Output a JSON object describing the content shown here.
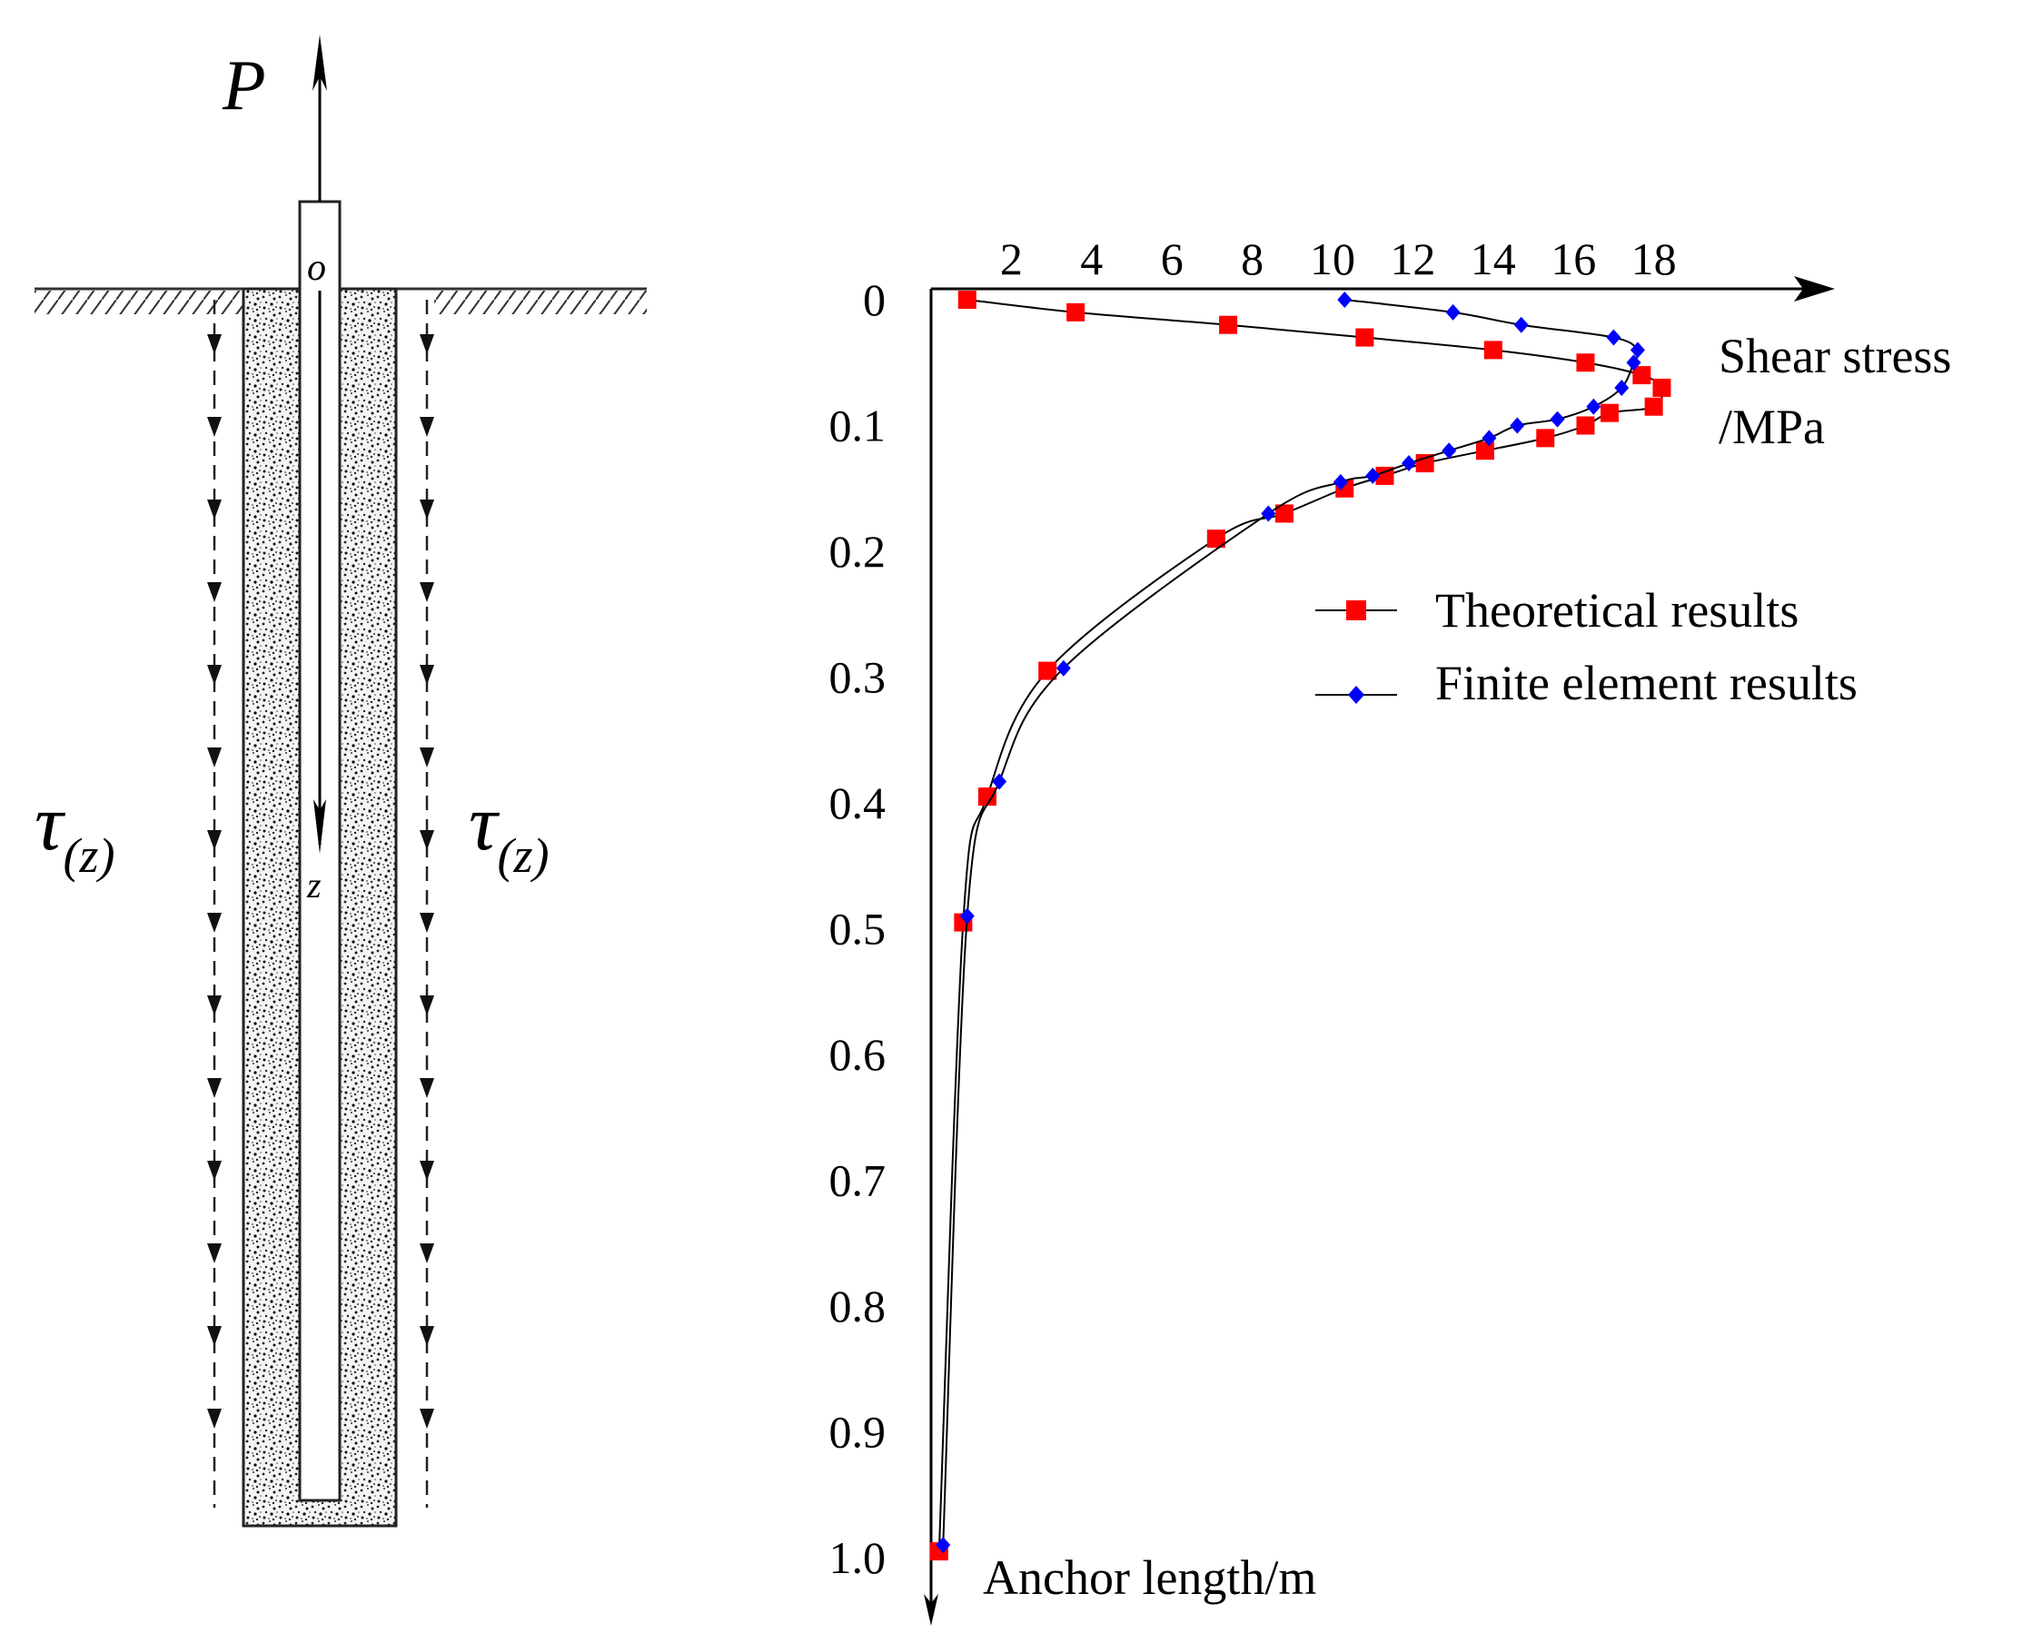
{
  "diagram": {
    "force_label": "P",
    "origin_label": "o",
    "z_label": "z",
    "tau_left": {
      "symbol": "τ",
      "subscript": "(z)"
    },
    "tau_right": {
      "symbol": "τ",
      "subscript": "(z)"
    }
  },
  "chart_data": {
    "type": "line",
    "x_axis": {
      "label_line1": "Shear stress",
      "label_line2": "/MPa",
      "ticks": [
        2,
        4,
        6,
        8,
        10,
        12,
        14,
        16,
        18
      ],
      "tick_labels": [
        "2",
        "4",
        "6",
        "8",
        "10",
        "12",
        "14",
        "16",
        "18"
      ],
      "range": [
        0,
        19.5
      ],
      "position": "top"
    },
    "y_axis": {
      "label": "Anchor length/m",
      "ticks": [
        0,
        0.1,
        0.2,
        0.3,
        0.4,
        0.5,
        0.6,
        0.7,
        0.8,
        0.9,
        1.0
      ],
      "tick_labels": [
        "0",
        "0.1",
        "0.2",
        "0.3",
        "0.4",
        "0.5",
        "0.6",
        "0.7",
        "0.8",
        "0.9",
        "1.0"
      ],
      "range": [
        0,
        1.05
      ],
      "inverted": true
    },
    "grid": false,
    "legend_position": "right-middle",
    "series": [
      {
        "name": "Theoretical results",
        "color": "#ff0000",
        "marker": "square",
        "points": [
          [
            0.9,
            0.0
          ],
          [
            3.6,
            0.01
          ],
          [
            7.4,
            0.02
          ],
          [
            10.8,
            0.03
          ],
          [
            14.0,
            0.04
          ],
          [
            16.3,
            0.05
          ],
          [
            17.7,
            0.06
          ],
          [
            18.2,
            0.07
          ],
          [
            18.0,
            0.085
          ],
          [
            16.9,
            0.09
          ],
          [
            16.3,
            0.1
          ],
          [
            15.3,
            0.11
          ],
          [
            13.8,
            0.12
          ],
          [
            12.3,
            0.13
          ],
          [
            11.3,
            0.14
          ],
          [
            10.3,
            0.15
          ],
          [
            8.8,
            0.17
          ],
          [
            7.1,
            0.19
          ],
          [
            2.9,
            0.295
          ],
          [
            1.4,
            0.395
          ],
          [
            0.8,
            0.495
          ],
          [
            0.2,
            0.995
          ]
        ]
      },
      {
        "name": "Finite element results",
        "color": "#0000ff",
        "marker": "diamond",
        "points": [
          [
            10.3,
            0.0
          ],
          [
            13.0,
            0.01
          ],
          [
            14.7,
            0.02
          ],
          [
            17.0,
            0.03
          ],
          [
            17.6,
            0.04
          ],
          [
            17.5,
            0.05
          ],
          [
            17.2,
            0.07
          ],
          [
            16.5,
            0.085
          ],
          [
            15.6,
            0.095
          ],
          [
            14.6,
            0.1
          ],
          [
            13.9,
            0.11
          ],
          [
            12.9,
            0.12
          ],
          [
            11.9,
            0.13
          ],
          [
            11.0,
            0.14
          ],
          [
            10.2,
            0.145
          ],
          [
            8.4,
            0.17
          ],
          [
            3.3,
            0.293
          ],
          [
            1.7,
            0.383
          ],
          [
            0.9,
            0.49
          ],
          [
            0.3,
            0.99
          ]
        ]
      }
    ]
  }
}
